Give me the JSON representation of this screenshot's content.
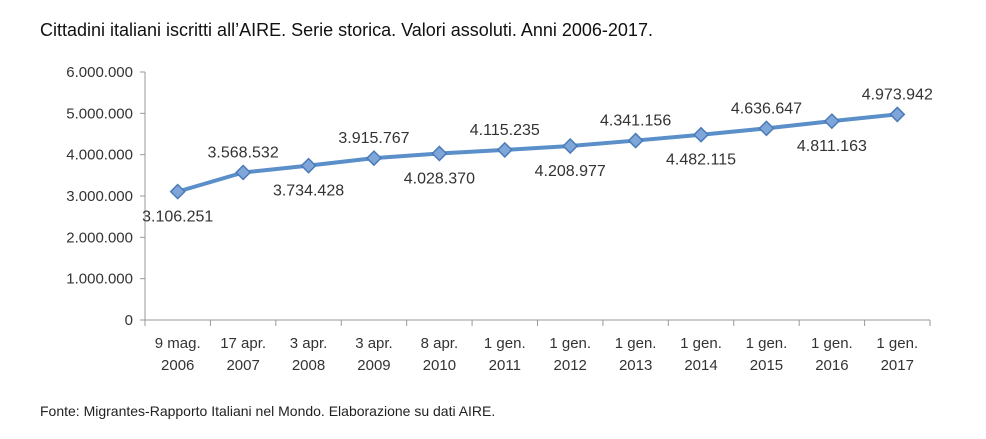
{
  "chart_data": {
    "type": "line",
    "title": "Cittadini italiani iscritti all’AIRE. Serie storica. Valori assoluti. Anni 2006-2017.",
    "source": "Fonte: Migrantes-Rapporto Italiani nel Mondo. Elaborazione su dati AIRE.",
    "categories": [
      [
        "9 mag.",
        "2006"
      ],
      [
        "17 apr.",
        "2007"
      ],
      [
        "3 apr.",
        "2008"
      ],
      [
        "3 apr.",
        "2009"
      ],
      [
        "8 apr.",
        "2010"
      ],
      [
        "1 gen.",
        "2011"
      ],
      [
        "1 gen.",
        "2012"
      ],
      [
        "1 gen.",
        "2013"
      ],
      [
        "1 gen.",
        "2014"
      ],
      [
        "1 gen.",
        "2015"
      ],
      [
        "1 gen.",
        "2016"
      ],
      [
        "1 gen.",
        "2017"
      ]
    ],
    "values": [
      3106251,
      3568532,
      3734428,
      3915767,
      4028370,
      4115235,
      4208977,
      4341156,
      4482115,
      4636647,
      4811163,
      4973942
    ],
    "data_labels": [
      "3.106.251",
      "3.568.532",
      "3.734.428",
      "3.915.767",
      "4.028.370",
      "4.115.235",
      "4.208.977",
      "4.341.156",
      "4.482.115",
      "4.636.647",
      "4.811.163",
      "4.973.942"
    ],
    "label_position": [
      "below",
      "above",
      "below",
      "above",
      "below",
      "above",
      "below",
      "above",
      "below",
      "above",
      "below",
      "above"
    ],
    "ylim": [
      0,
      6000000
    ],
    "yticks": [
      0,
      1000000,
      2000000,
      3000000,
      4000000,
      5000000,
      6000000
    ],
    "ytick_labels": [
      "0",
      "1.000.000",
      "2.000.000",
      "3.000.000",
      "4.000.000",
      "5.000.000",
      "6.000.000"
    ],
    "xlabel": "",
    "ylabel": "",
    "grid": false,
    "legend": "none",
    "colors": {
      "line": "#5b8fc9",
      "marker_fill": "#7ea6d8",
      "marker_stroke": "#4a7ab8",
      "axis": "#999999"
    }
  }
}
